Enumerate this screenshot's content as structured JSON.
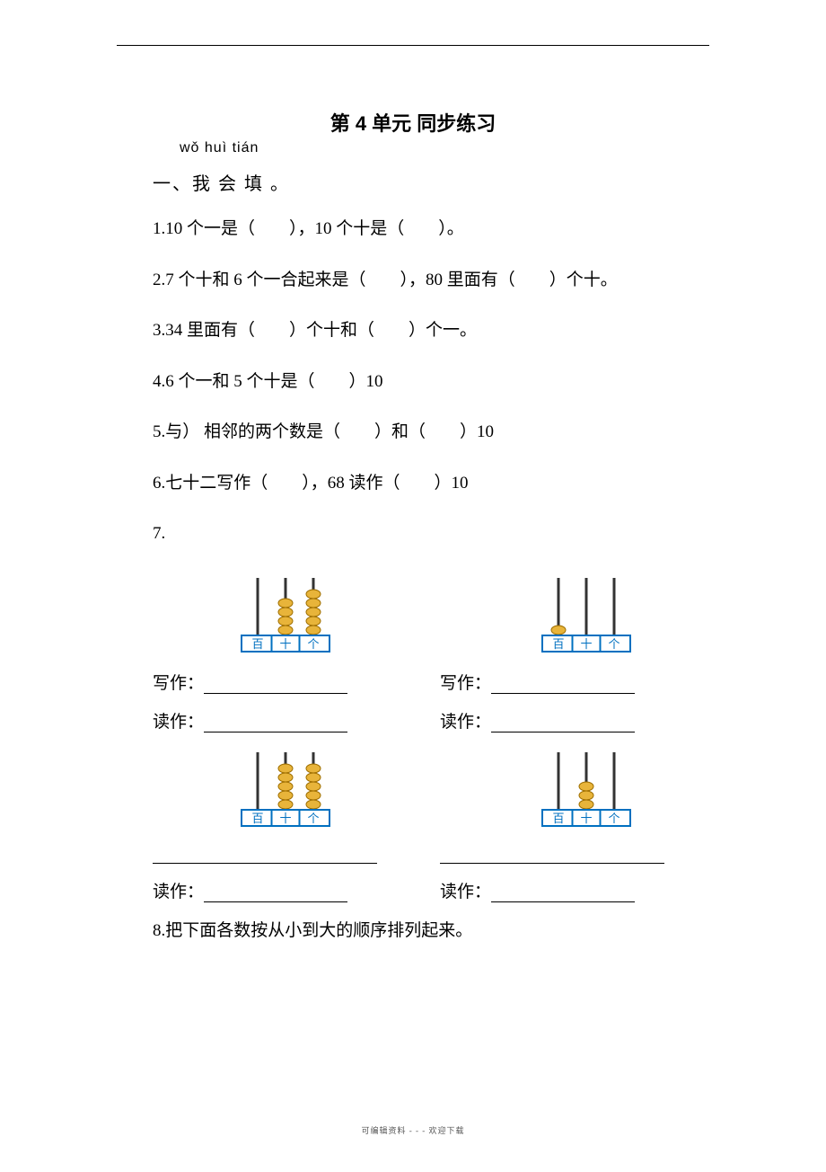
{
  "title": "第 4 单元  同步练习",
  "pinyin": "wǒ huì tián",
  "section1": "一、我  会   填 。",
  "q1": "1.10 个一是（　　），10 个十是（　　）。",
  "q2": "2.7 个十和 6 个一合起来是（　　），80 里面有（　　）个十。",
  "q3": "3.34 里面有（　　）个十和（　　）个一。",
  "q4": "4.6 个一和 5 个十是（　　）10",
  "q5": "5.与） 相邻的两个数是（　　）和（　　）10",
  "q6": "6.七十二写作（　　），68 读作（　　）10",
  "q7": "7.",
  "write_label": "写作：",
  "read_label": "读作：",
  "q8": "8.把下面各数按从小到大的顺序排列起来。",
  "footer": "可编辑资料  - - -  欢迎下载",
  "abacus": {
    "colors": {
      "frame": "#0070c0",
      "rod": "#333333",
      "bead": "#e8b43a",
      "bead_stroke": "#9e6e00",
      "label_bg": "#ffffff",
      "label_text": "#0070c0"
    },
    "labels": [
      "百",
      "十",
      "个"
    ],
    "items": [
      {
        "beads": [
          0,
          4,
          5
        ]
      },
      {
        "beads": [
          1,
          0,
          0
        ]
      },
      {
        "beads": [
          0,
          5,
          5
        ]
      },
      {
        "beads": [
          0,
          3,
          0
        ]
      }
    ]
  }
}
